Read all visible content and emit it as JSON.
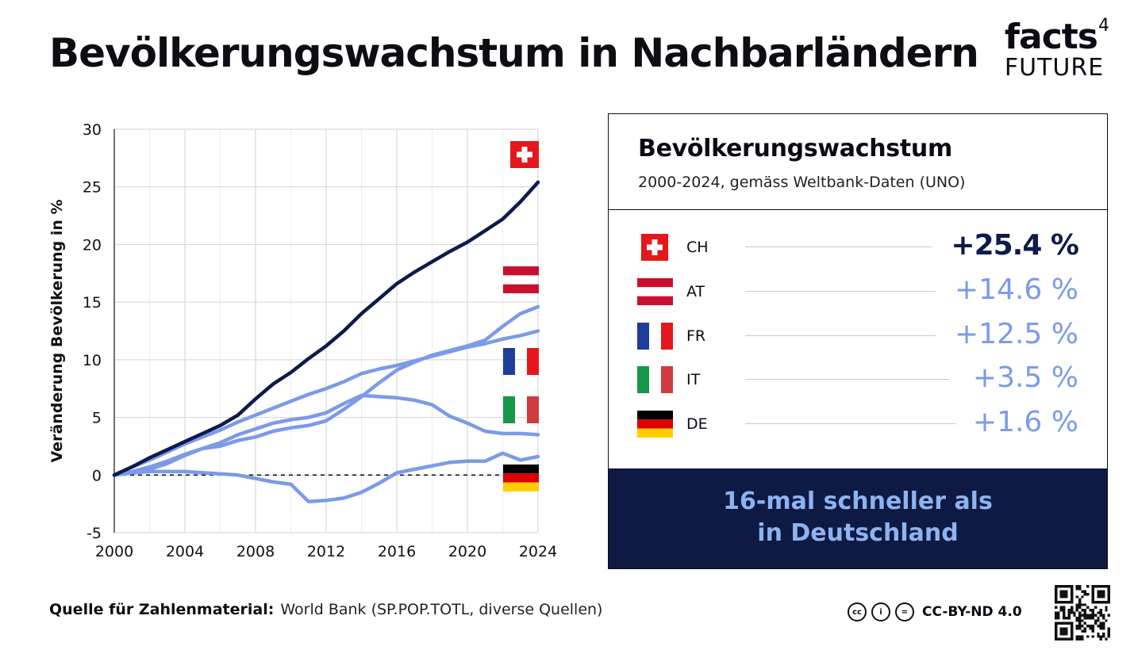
{
  "title": "Bevölkerungswachstum in Nachbarländern",
  "logo": {
    "line1": "facts",
    "sup": "4",
    "line2": "FUTURE"
  },
  "panel": {
    "title": "Bevölkerungswachstum",
    "subtitle": "2000-2024, gemäss Weltbank-Daten (UNO)",
    "rows": [
      {
        "code": "CH",
        "value": "+25.4 %"
      },
      {
        "code": "AT",
        "value": "+14.6 %"
      },
      {
        "code": "FR",
        "value": "+12.5 %"
      },
      {
        "code": "IT",
        "value": "+3.5 %"
      },
      {
        "code": "DE",
        "value": "+1.6 %"
      }
    ],
    "banner": {
      "line1": "16-mal schneller als",
      "line2": "in Deutschland"
    }
  },
  "footer": {
    "source_label": "Quelle für Zahlenmaterial:",
    "source_text": "World Bank (SP.POP.TOTL, diverse Quellen)",
    "license": "CC-BY-ND 4.0"
  },
  "colors": {
    "ch": "#0d1b4a",
    "others": "#7b9ae8",
    "banner": "#0e1a44"
  },
  "chart_data": {
    "type": "line",
    "title": "",
    "xlabel": "",
    "ylabel": "Veränderung Bevölkerung in %",
    "xlim": [
      2000,
      2024
    ],
    "ylim": [
      -5,
      30
    ],
    "xticks": [
      2000,
      2004,
      2008,
      2012,
      2016,
      2020,
      2024
    ],
    "yticks": [
      -5,
      0,
      5,
      10,
      15,
      20,
      25,
      30
    ],
    "grid": true,
    "reference_line": 0,
    "x": [
      2000,
      2001,
      2002,
      2003,
      2004,
      2005,
      2006,
      2007,
      2008,
      2009,
      2010,
      2011,
      2012,
      2013,
      2014,
      2015,
      2016,
      2017,
      2018,
      2019,
      2020,
      2021,
      2022,
      2023,
      2024
    ],
    "series": [
      {
        "name": "CH",
        "values": [
          0,
          0.7,
          1.5,
          2.2,
          2.9,
          3.6,
          4.3,
          5.2,
          6.6,
          7.9,
          8.9,
          10.1,
          11.2,
          12.5,
          14.0,
          15.3,
          16.6,
          17.6,
          18.5,
          19.4,
          20.2,
          21.2,
          22.2,
          23.7,
          25.4
        ]
      },
      {
        "name": "AT",
        "values": [
          0,
          0.3,
          0.7,
          1.2,
          1.8,
          2.3,
          2.5,
          3.0,
          3.3,
          3.8,
          4.1,
          4.3,
          4.7,
          5.7,
          6.8,
          8.0,
          9.1,
          9.8,
          10.4,
          10.8,
          11.2,
          11.7,
          12.9,
          14.0,
          14.6
        ]
      },
      {
        "name": "FR",
        "values": [
          0,
          0.7,
          1.3,
          2.0,
          2.7,
          3.3,
          3.9,
          4.6,
          5.2,
          5.8,
          6.4,
          7.0,
          7.5,
          8.1,
          8.8,
          9.2,
          9.5,
          9.9,
          10.3,
          10.7,
          11.1,
          11.4,
          11.8,
          12.1,
          12.5
        ]
      },
      {
        "name": "IT",
        "values": [
          0,
          0.2,
          0.5,
          1.0,
          1.7,
          2.3,
          2.8,
          3.5,
          4.0,
          4.5,
          4.8,
          5.0,
          5.4,
          6.2,
          6.9,
          6.8,
          6.7,
          6.5,
          6.1,
          5.1,
          4.5,
          3.8,
          3.6,
          3.6,
          3.5
        ]
      },
      {
        "name": "DE",
        "values": [
          0,
          0.2,
          0.3,
          0.3,
          0.3,
          0.2,
          0.1,
          0.0,
          -0.3,
          -0.6,
          -0.8,
          -2.3,
          -2.2,
          -2.0,
          -1.5,
          -0.7,
          0.2,
          0.5,
          0.8,
          1.1,
          1.2,
          1.2,
          1.9,
          1.3,
          1.6
        ]
      }
    ]
  }
}
